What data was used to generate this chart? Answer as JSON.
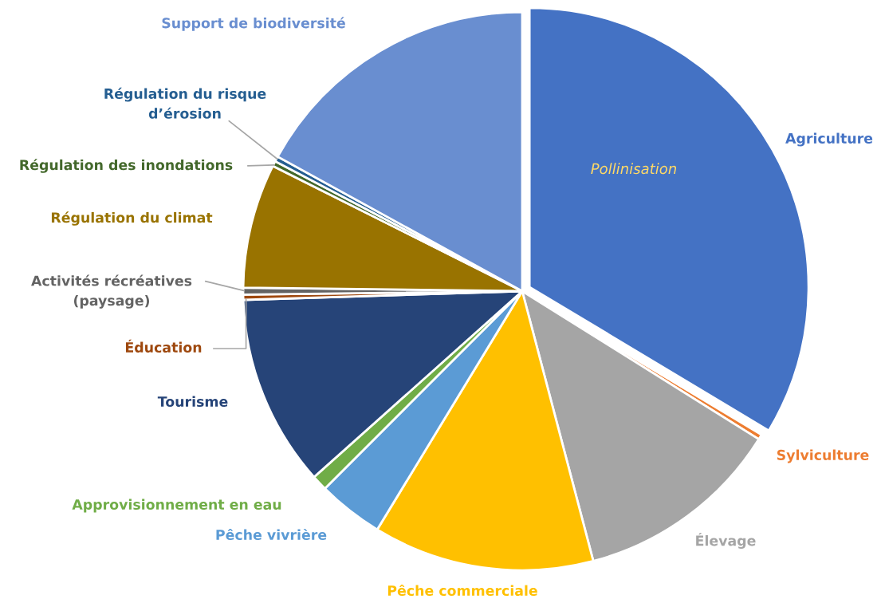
{
  "chart_data": {
    "type": "pie",
    "categories": [
      "Agriculture",
      "Sylviculture",
      "Élevage",
      "Pêche commerciale",
      "Pêche vivrière",
      "Approvisionnement en eau",
      "Tourisme",
      "Éducation",
      "Activités récréatives\n(paysage)",
      "Régulation du climat",
      "Régulation des inondations",
      "Régulation du risque\nd’érosion",
      "Support de biodiversité"
    ],
    "values": [
      33.6,
      0.3,
      12,
      12.8,
      3.8,
      0.9,
      11.1,
      0.3,
      0.4,
      7.2,
      0.3,
      0.3,
      17
    ],
    "colors": [
      "#4472c4",
      "#ed7d31",
      "#a5a5a5",
      "#ffc000",
      "#5b9bd5",
      "#70ad47",
      "#264478",
      "#9e480e",
      "#636363",
      "#997300",
      "#43682b",
      "#255e91",
      "#698ed0"
    ],
    "annotations": [
      "Pollinisation"
    ],
    "legend": false
  }
}
